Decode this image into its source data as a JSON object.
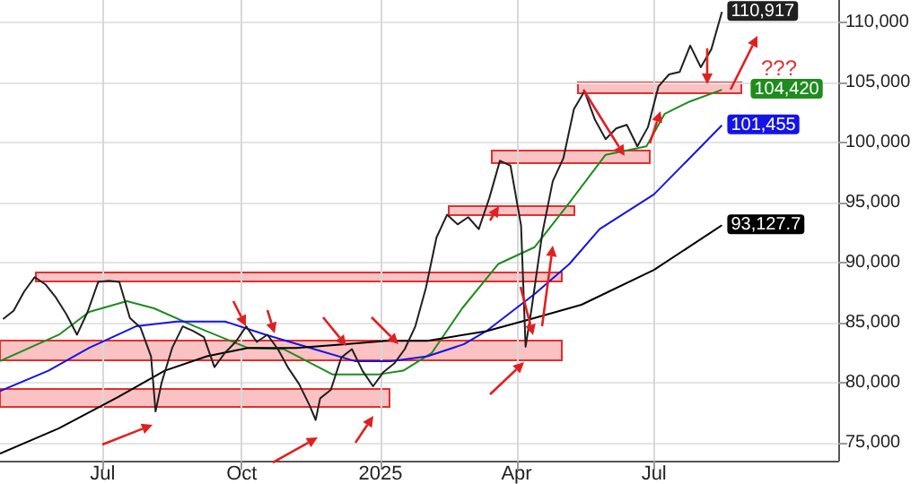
{
  "chart_data": {
    "type": "line",
    "marker": "none",
    "grid": true,
    "xlim": [
      "2024-04-24",
      "2025-10-31"
    ],
    "xticks": [
      {
        "value": "2024-07-01",
        "label": "Jul"
      },
      {
        "value": "2024-10-01",
        "label": "Oct"
      },
      {
        "value": "2025-01-01",
        "label": "2025"
      },
      {
        "value": "2025-04-01",
        "label": "Apr"
      },
      {
        "value": "2025-07-01",
        "label": "Jul"
      }
    ],
    "ylim": [
      73500,
      111900
    ],
    "yticks": [
      {
        "value": 75000,
        "label": "75,000"
      },
      {
        "value": 80000,
        "label": "80,000"
      },
      {
        "value": 85000,
        "label": "85,000"
      },
      {
        "value": 90000,
        "label": "90,000"
      },
      {
        "value": 95000,
        "label": "95,000"
      },
      {
        "value": 100000,
        "label": "100,000"
      },
      {
        "value": 105000,
        "label": "105,000"
      },
      {
        "value": 110000,
        "label": "110,000"
      }
    ],
    "annotations": [
      "???"
    ],
    "series": [
      {
        "color": "#202020",
        "x": [
          "2024-04-26",
          "2024-05-03",
          "2024-05-10",
          "2024-05-17",
          "2024-05-24",
          "2024-05-31",
          "2024-06-07",
          "2024-06-14",
          "2024-06-21",
          "2024-06-28",
          "2024-07-05",
          "2024-07-12",
          "2024-07-19",
          "2024-07-26",
          "2024-08-02",
          "2024-08-05",
          "2024-08-09",
          "2024-08-16",
          "2024-08-23",
          "2024-08-30",
          "2024-09-06",
          "2024-09-13",
          "2024-09-20",
          "2024-09-27",
          "2024-10-04",
          "2024-10-11",
          "2024-10-18",
          "2024-10-25",
          "2024-11-01",
          "2024-11-08",
          "2024-11-15",
          "2024-11-19",
          "2024-11-22",
          "2024-11-29",
          "2024-12-06",
          "2024-12-13",
          "2024-12-20",
          "2024-12-27",
          "2025-01-03",
          "2025-01-10",
          "2025-01-17",
          "2025-01-24",
          "2025-01-31",
          "2025-02-07",
          "2025-02-14",
          "2025-02-21",
          "2025-02-28",
          "2025-03-07",
          "2025-03-14",
          "2025-03-21",
          "2025-03-28",
          "2025-04-04",
          "2025-04-07",
          "2025-04-11",
          "2025-04-18",
          "2025-04-25",
          "2025-05-02",
          "2025-05-09",
          "2025-05-16",
          "2025-05-23",
          "2025-05-30",
          "2025-06-06",
          "2025-06-13",
          "2025-06-20",
          "2025-06-27",
          "2025-07-04",
          "2025-07-11",
          "2025-07-18",
          "2025-07-25",
          "2025-08-01",
          "2025-08-08",
          "2025-08-15"
        ],
        "values": [
          85300,
          86000,
          87600,
          88800,
          88200,
          87100,
          85700,
          84000,
          85900,
          88400,
          88500,
          88400,
          85400,
          84600,
          82200,
          77600,
          80000,
          82900,
          84700,
          84300,
          83800,
          81300,
          82500,
          83400,
          84700,
          83400,
          84000,
          82800,
          81200,
          79900,
          78100,
          76900,
          78700,
          79400,
          82100,
          82800,
          81000,
          79700,
          80900,
          81600,
          82800,
          84700,
          87900,
          92100,
          94000,
          93200,
          93800,
          92800,
          95400,
          98500,
          98100,
          93100,
          83000,
          86200,
          92400,
          96800,
          98700,
          102800,
          104300,
          101900,
          100300,
          101200,
          101500,
          99700,
          101300,
          104700,
          105700,
          105900,
          108100,
          106300,
          107800,
          110917
        ],
        "value_labels": [
          null,
          null,
          null,
          null,
          null,
          null,
          null,
          null,
          null,
          null,
          null,
          null,
          null,
          null,
          null,
          null,
          null,
          null,
          null,
          null,
          null,
          null,
          null,
          null,
          null,
          null,
          null,
          null,
          null,
          null,
          null,
          null,
          null,
          null,
          null,
          null,
          null,
          null,
          null,
          null,
          null,
          null,
          null,
          null,
          null,
          null,
          null,
          null,
          null,
          null,
          null,
          null,
          null,
          null,
          null,
          null,
          null,
          null,
          null,
          null,
          null,
          null,
          null,
          null,
          null,
          null,
          null,
          null,
          null,
          null,
          null,
          "110,917"
        ]
      },
      {
        "color": "#1e8c1e",
        "x": [
          "2024-04-24",
          "2024-06-02",
          "2024-06-22",
          "2024-07-17",
          "2024-08-04",
          "2024-08-31",
          "2024-10-05",
          "2024-10-29",
          "2024-11-30",
          "2024-12-31",
          "2025-01-16",
          "2025-02-04",
          "2025-02-24",
          "2025-03-20",
          "2025-04-13",
          "2025-05-06",
          "2025-05-30",
          "2025-06-26",
          "2025-07-08",
          "2025-07-24",
          "2025-08-15"
        ],
        "values": [
          81800,
          84000,
          85900,
          86800,
          86200,
          84700,
          82900,
          82800,
          80700,
          80700,
          81000,
          82500,
          86200,
          89900,
          91300,
          95000,
          99000,
          99700,
          102400,
          103400,
          104420
        ],
        "value_labels": [
          null,
          null,
          null,
          null,
          null,
          null,
          null,
          null,
          null,
          null,
          null,
          null,
          null,
          null,
          null,
          null,
          null,
          null,
          null,
          null,
          "104,420"
        ]
      },
      {
        "color": "#1414e6",
        "x": [
          "2024-04-24",
          "2024-05-26",
          "2024-06-22",
          "2024-07-23",
          "2024-08-19",
          "2024-09-20",
          "2024-10-17",
          "2024-11-18",
          "2024-12-15",
          "2025-01-08",
          "2025-02-01",
          "2025-02-25",
          "2025-03-12",
          "2025-04-13",
          "2025-05-06",
          "2025-05-26",
          "2025-07-01",
          "2025-08-15"
        ],
        "values": [
          79300,
          81000,
          82900,
          84700,
          85100,
          85100,
          84000,
          82800,
          81800,
          81800,
          82200,
          83200,
          84300,
          87400,
          89900,
          92800,
          95700,
          101455
        ],
        "value_labels": [
          null,
          null,
          null,
          null,
          null,
          null,
          null,
          null,
          null,
          null,
          null,
          null,
          null,
          null,
          null,
          null,
          null,
          "101,455"
        ]
      },
      {
        "color": "#000000",
        "x": [
          "2024-04-24",
          "2024-06-02",
          "2024-07-11",
          "2024-08-11",
          "2024-09-08",
          "2024-10-05",
          "2024-11-06",
          "2024-12-07",
          "2025-01-05",
          "2025-02-01",
          "2025-03-12",
          "2025-04-13",
          "2025-05-14",
          "2025-07-01",
          "2025-08-15"
        ],
        "values": [
          74100,
          76200,
          78800,
          81000,
          82200,
          82900,
          82900,
          83200,
          83500,
          83500,
          84300,
          85400,
          86500,
          89400,
          93127.7
        ],
        "value_labels": [
          null,
          null,
          null,
          null,
          null,
          null,
          null,
          null,
          null,
          null,
          null,
          null,
          null,
          null,
          "93,127.7"
        ]
      }
    ]
  }
}
